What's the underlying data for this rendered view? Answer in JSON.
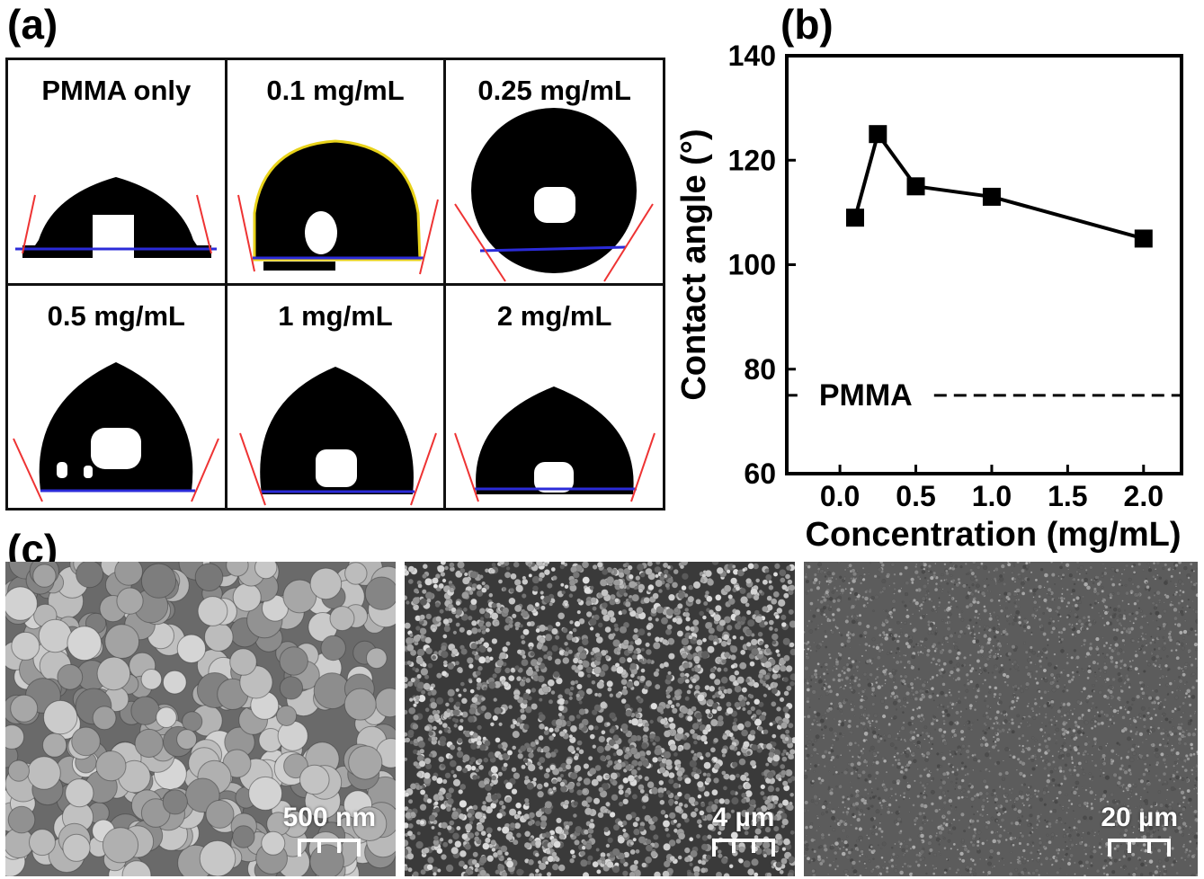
{
  "panel_labels": {
    "a": "(a)",
    "b": "(b)",
    "c": "(c)"
  },
  "panel_a": {
    "cells": [
      {
        "label": "PMMA only"
      },
      {
        "label": "0.1 mg/mL"
      },
      {
        "label": "0.25 mg/mL"
      },
      {
        "label": "0.5 mg/mL"
      },
      {
        "label": "1 mg/mL"
      },
      {
        "label": "2 mg/mL"
      }
    ]
  },
  "chart_data": {
    "type": "line",
    "x": [
      0.1,
      0.25,
      0.5,
      1.0,
      2.0
    ],
    "series": [
      {
        "values": [
          109,
          125,
          115,
          113,
          105
        ],
        "marker": "square",
        "color": "#000000"
      }
    ],
    "reference_line": {
      "label": "PMMA",
      "value": 75,
      "style": "dashed"
    },
    "xlabel": "Concentration (mg/mL)",
    "ylabel": "Contact angle (°)",
    "xlim": [
      -0.35,
      2.25
    ],
    "ylim": [
      60,
      140
    ],
    "xticks": [
      "0.0",
      "0.5",
      "1.0",
      "1.5",
      "2.0"
    ],
    "xtick_values": [
      0.0,
      0.5,
      1.0,
      1.5,
      2.0
    ],
    "yticks": [
      "60",
      "80",
      "100",
      "120",
      "140"
    ],
    "ytick_values": [
      60,
      80,
      100,
      120,
      140
    ],
    "grid": false
  },
  "panel_c": {
    "images": [
      {
        "scale": "500 nm"
      },
      {
        "scale": "4 µm"
      },
      {
        "scale": "20 µm"
      }
    ]
  }
}
